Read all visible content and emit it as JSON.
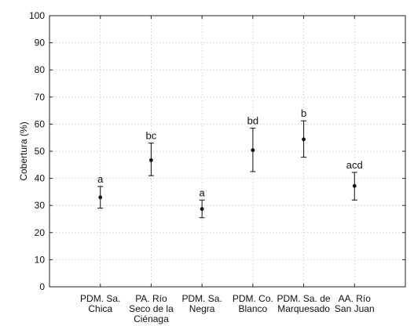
{
  "chart_data": {
    "type": "scatter",
    "ylabel": "Cobertura (%)",
    "xlabel": "",
    "ylim": [
      0,
      100
    ],
    "yticks": [
      0,
      10,
      20,
      30,
      40,
      50,
      60,
      70,
      80,
      90,
      100
    ],
    "grid": true,
    "categories": [
      [
        "PDM. Sa.",
        "Chica"
      ],
      [
        "PA. Río",
        "Seco de la",
        "Ciénaga"
      ],
      [
        "PDM. Sa.",
        "Negra"
      ],
      [
        "PDM. Co.",
        "Blanco"
      ],
      [
        "PDM. Sa. de",
        "Marquesado"
      ],
      [
        "AA. Río",
        "San Juan"
      ]
    ],
    "means": [
      33,
      46.7,
      28.7,
      50.4,
      54.4,
      37.2
    ],
    "lower": [
      29,
      41,
      25.5,
      42.5,
      47.8,
      32
    ],
    "upper": [
      37,
      53,
      32,
      58.5,
      61.2,
      42.2
    ],
    "letters": [
      "a",
      "bc",
      "a",
      "bd",
      "b",
      "acd"
    ]
  }
}
